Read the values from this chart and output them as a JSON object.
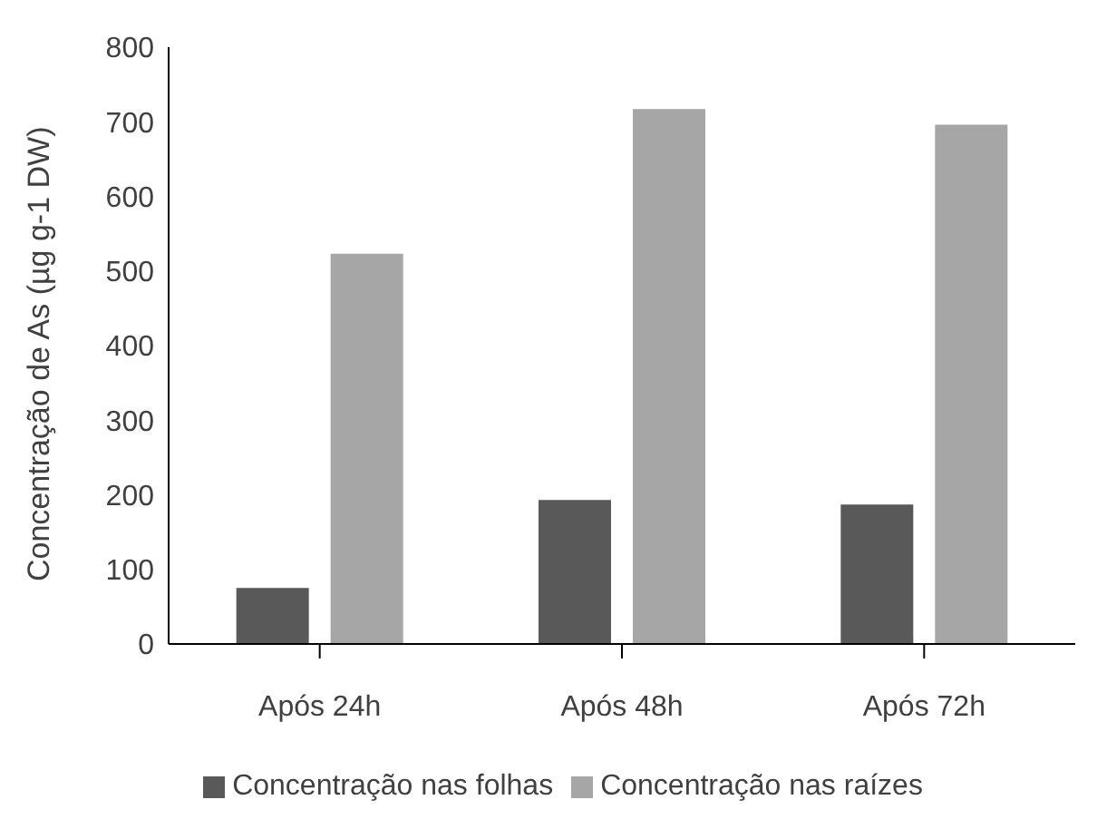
{
  "chart_data": {
    "type": "bar",
    "ylabel": "Concentração de As (µg g-1 DW)",
    "categories": [
      "Após 24h",
      "Após 48h",
      "Após 72h"
    ],
    "series": [
      {
        "name": "Concentração nas folhas",
        "color": "#595959",
        "values": [
          75,
          193,
          187
        ]
      },
      {
        "name": "Concentração nas raízes",
        "color": "#a6a6a6",
        "values": [
          523,
          717,
          696
        ]
      }
    ],
    "ylim": [
      0,
      800
    ],
    "yticks": [
      0,
      100,
      200,
      300,
      400,
      500,
      600,
      700,
      800
    ],
    "grid": false,
    "legend": "bottom"
  }
}
